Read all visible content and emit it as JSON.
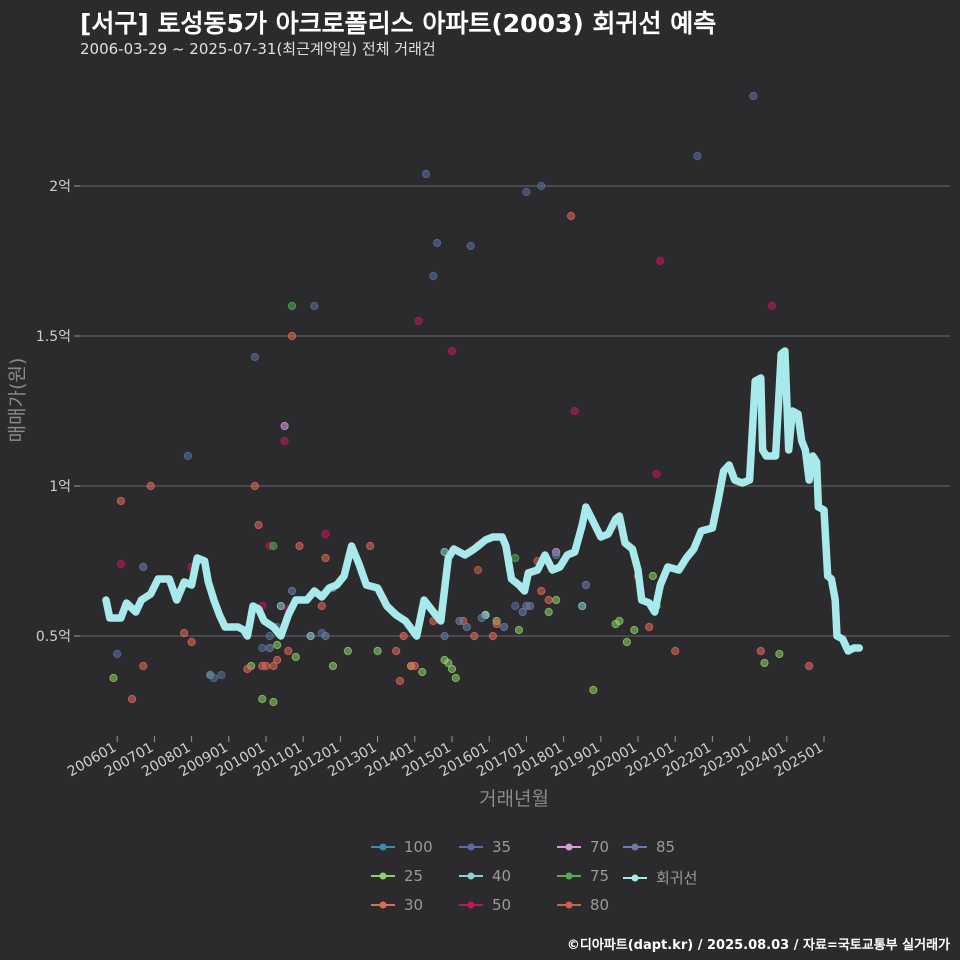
{
  "chart_data": {
    "type": "scatter",
    "title": "[서구] 토성동5가 아크로폴리스 아파트(2003) 회귀선 예측",
    "subtitle": "2006-03-29 ~ 2025-07-31(최근계약일) 전체 거래건",
    "xlabel": "거래년월",
    "ylabel": "매매가(원)",
    "footer": "©디아파트(dapt.kr) / 2025.08.03 / 자료=국토교통부 실거래가",
    "xlim": [
      2006.1,
      2025.9
    ],
    "ylim": [
      0.15,
      2.45
    ],
    "y_ticks": [
      {
        "v": 0.5,
        "label": "0.5억"
      },
      {
        "v": 1.0,
        "label": "1억"
      },
      {
        "v": 1.5,
        "label": "1.5억"
      },
      {
        "v": 2.0,
        "label": "2억"
      }
    ],
    "x_ticks": [
      {
        "v": 2006.0,
        "label": "200601"
      },
      {
        "v": 2007.0,
        "label": "200701"
      },
      {
        "v": 2008.0,
        "label": "200801"
      },
      {
        "v": 2009.0,
        "label": "200901"
      },
      {
        "v": 2010.0,
        "label": "201001"
      },
      {
        "v": 2011.0,
        "label": "201101"
      },
      {
        "v": 2012.0,
        "label": "201201"
      },
      {
        "v": 2013.0,
        "label": "201301"
      },
      {
        "v": 2014.0,
        "label": "201401"
      },
      {
        "v": 2015.0,
        "label": "201501"
      },
      {
        "v": 2016.0,
        "label": "201601"
      },
      {
        "v": 2017.0,
        "label": "201701"
      },
      {
        "v": 2018.0,
        "label": "201801"
      },
      {
        "v": 2019.0,
        "label": "201901"
      },
      {
        "v": 2020.0,
        "label": "202001"
      },
      {
        "v": 2021.0,
        "label": "202101"
      },
      {
        "v": 2022.0,
        "label": "202201"
      },
      {
        "v": 2023.0,
        "label": "202301"
      },
      {
        "v": 2024.0,
        "label": "202401"
      },
      {
        "v": 2025.0,
        "label": "202501"
      }
    ],
    "legend_position": "bottom",
    "grid": "horizontal",
    "series": [
      {
        "name": "100",
        "color": "#3a8fa8",
        "points": []
      },
      {
        "name": "25",
        "color": "#8fcf6a",
        "points": [
          [
            2006.4,
            0.36
          ],
          [
            2009.0,
            0.37
          ],
          [
            2010.1,
            0.4
          ],
          [
            2010.4,
            0.29
          ],
          [
            2010.7,
            0.28
          ],
          [
            2010.8,
            0.47
          ],
          [
            2011.3,
            0.43
          ],
          [
            2012.3,
            0.4
          ],
          [
            2012.7,
            0.45
          ],
          [
            2013.5,
            0.45
          ],
          [
            2014.4,
            0.4
          ],
          [
            2014.7,
            0.38
          ],
          [
            2015.3,
            0.42
          ],
          [
            2015.4,
            0.41
          ],
          [
            2015.5,
            0.39
          ],
          [
            2015.6,
            0.36
          ],
          [
            2016.4,
            0.57
          ],
          [
            2016.7,
            0.55
          ],
          [
            2017.3,
            0.52
          ],
          [
            2018.1,
            0.58
          ],
          [
            2018.3,
            0.62
          ],
          [
            2019.3,
            0.32
          ],
          [
            2019.9,
            0.54
          ],
          [
            2020.0,
            0.55
          ],
          [
            2020.2,
            0.48
          ],
          [
            2020.4,
            0.52
          ],
          [
            2020.9,
            0.7
          ],
          [
            2021.0,
            0.6
          ],
          [
            2023.9,
            0.41
          ],
          [
            2024.3,
            0.44
          ]
        ]
      },
      {
        "name": "30",
        "color": "#e06a5a",
        "points": [
          [
            2006.6,
            0.95
          ],
          [
            2006.9,
            0.29
          ],
          [
            2007.2,
            0.4
          ],
          [
            2007.4,
            1.0
          ],
          [
            2008.3,
            0.51
          ],
          [
            2008.5,
            0.48
          ],
          [
            2010.0,
            0.39
          ],
          [
            2010.2,
            1.0
          ],
          [
            2010.3,
            0.87
          ],
          [
            2010.4,
            0.4
          ],
          [
            2010.5,
            0.4
          ],
          [
            2010.7,
            0.4
          ],
          [
            2010.8,
            0.42
          ],
          [
            2011.1,
            0.45
          ],
          [
            2011.2,
            1.5
          ],
          [
            2011.4,
            0.8
          ],
          [
            2012.0,
            0.6
          ],
          [
            2012.1,
            0.76
          ],
          [
            2013.3,
            0.8
          ],
          [
            2014.0,
            0.45
          ],
          [
            2014.1,
            0.35
          ],
          [
            2014.2,
            0.5
          ],
          [
            2014.4,
            0.4
          ],
          [
            2014.5,
            0.4
          ],
          [
            2015.0,
            0.55
          ],
          [
            2015.8,
            0.55
          ],
          [
            2016.1,
            0.5
          ],
          [
            2016.2,
            0.8
          ],
          [
            2016.6,
            0.5
          ],
          [
            2016.7,
            0.54
          ],
          [
            2017.9,
            0.65
          ],
          [
            2018.1,
            0.62
          ],
          [
            2018.7,
            1.9
          ],
          [
            2020.5,
            0.7
          ],
          [
            2020.8,
            0.53
          ],
          [
            2021.5,
            0.45
          ],
          [
            2023.8,
            0.45
          ],
          [
            2025.1,
            0.4
          ]
        ]
      },
      {
        "name": "35",
        "color": "#5a6fa0",
        "points": [
          [
            2006.5,
            0.44
          ],
          [
            2008.4,
            1.1
          ],
          [
            2009.0,
            0.37
          ],
          [
            2009.1,
            0.36
          ],
          [
            2009.3,
            0.37
          ],
          [
            2010.2,
            1.43
          ],
          [
            2010.4,
            0.46
          ],
          [
            2010.6,
            0.5
          ],
          [
            2010.8,
            0.53
          ],
          [
            2011.8,
            1.6
          ],
          [
            2012.0,
            0.51
          ],
          [
            2014.8,
            2.04
          ],
          [
            2015.0,
            1.7
          ],
          [
            2015.1,
            1.81
          ],
          [
            2016.0,
            1.8
          ],
          [
            2017.2,
            0.6
          ],
          [
            2017.5,
            1.98
          ],
          [
            2017.9,
            2.0
          ],
          [
            2022.1,
            2.1
          ],
          [
            2023.6,
            2.3
          ]
        ]
      },
      {
        "name": "40",
        "color": "#8ecfd6",
        "points": [
          [
            2010.9,
            0.6
          ],
          [
            2011.7,
            0.5
          ],
          [
            2015.3,
            0.78
          ],
          [
            2016.4,
            0.57
          ],
          [
            2019.0,
            0.6
          ]
        ]
      },
      {
        "name": "50",
        "color": "#c0185a",
        "points": [
          [
            2006.6,
            0.74
          ],
          [
            2008.5,
            0.73
          ],
          [
            2010.4,
            0.6
          ],
          [
            2010.6,
            0.8
          ],
          [
            2011.0,
            1.15
          ],
          [
            2011.1,
            0.59
          ],
          [
            2012.1,
            0.84
          ],
          [
            2014.6,
            1.55
          ],
          [
            2015.5,
            1.45
          ],
          [
            2018.8,
            1.25
          ],
          [
            2019.9,
            0.87
          ],
          [
            2021.0,
            1.04
          ],
          [
            2021.1,
            1.75
          ],
          [
            2024.1,
            1.6
          ]
        ]
      },
      {
        "name": "70",
        "color": "#d79cdc",
        "points": [
          [
            2011.0,
            1.2
          ],
          [
            2018.3,
            0.78
          ]
        ]
      },
      {
        "name": "75",
        "color": "#4caf50",
        "points": [
          [
            2010.7,
            0.8
          ],
          [
            2011.2,
            1.6
          ],
          [
            2017.2,
            0.76
          ]
        ]
      },
      {
        "name": "80",
        "color": "#d0604a",
        "points": [
          [
            2016.2,
            0.72
          ],
          [
            2017.8,
            0.75
          ]
        ]
      },
      {
        "name": "85",
        "color": "#6a7fa8",
        "points": [
          [
            2007.2,
            0.73
          ],
          [
            2010.6,
            0.46
          ],
          [
            2011.2,
            0.65
          ],
          [
            2012.1,
            0.5
          ],
          [
            2012.3,
            0.66
          ],
          [
            2015.3,
            0.5
          ],
          [
            2015.7,
            0.55
          ],
          [
            2015.9,
            0.53
          ],
          [
            2016.3,
            0.56
          ],
          [
            2016.9,
            0.53
          ],
          [
            2017.4,
            0.58
          ],
          [
            2017.5,
            0.6
          ],
          [
            2017.6,
            0.6
          ],
          [
            2018.3,
            0.77
          ],
          [
            2019.1,
            0.67
          ]
        ]
      },
      {
        "name": "회귀선",
        "color": "#a8eaec",
        "line": [
          [
            2006.2,
            0.62
          ],
          [
            2006.3,
            0.56
          ],
          [
            2006.6,
            0.56
          ],
          [
            2006.75,
            0.61
          ],
          [
            2007.0,
            0.58
          ],
          [
            2007.15,
            0.62
          ],
          [
            2007.4,
            0.64
          ],
          [
            2007.6,
            0.69
          ],
          [
            2007.9,
            0.69
          ],
          [
            2008.1,
            0.62
          ],
          [
            2008.3,
            0.68
          ],
          [
            2008.5,
            0.67
          ],
          [
            2008.65,
            0.76
          ],
          [
            2008.85,
            0.75
          ],
          [
            2008.95,
            0.68
          ],
          [
            2009.1,
            0.62
          ],
          [
            2009.25,
            0.57
          ],
          [
            2009.4,
            0.53
          ],
          [
            2009.75,
            0.53
          ],
          [
            2009.9,
            0.52
          ],
          [
            2010.0,
            0.5
          ],
          [
            2010.15,
            0.6
          ],
          [
            2010.3,
            0.59
          ],
          [
            2010.45,
            0.55
          ],
          [
            2010.7,
            0.53
          ],
          [
            2010.9,
            0.5
          ],
          [
            2011.1,
            0.57
          ],
          [
            2011.3,
            0.62
          ],
          [
            2011.6,
            0.62
          ],
          [
            2011.8,
            0.65
          ],
          [
            2012.0,
            0.63
          ],
          [
            2012.2,
            0.66
          ],
          [
            2012.4,
            0.67
          ],
          [
            2012.6,
            0.7
          ],
          [
            2012.8,
            0.8
          ],
          [
            2013.0,
            0.74
          ],
          [
            2013.2,
            0.67
          ],
          [
            2013.5,
            0.66
          ],
          [
            2013.75,
            0.6
          ],
          [
            2014.0,
            0.57
          ],
          [
            2014.25,
            0.55
          ],
          [
            2014.55,
            0.5
          ],
          [
            2014.75,
            0.62
          ],
          [
            2015.0,
            0.58
          ],
          [
            2015.2,
            0.55
          ],
          [
            2015.4,
            0.76
          ],
          [
            2015.55,
            0.79
          ],
          [
            2015.7,
            0.78
          ],
          [
            2015.85,
            0.77
          ],
          [
            2016.1,
            0.79
          ],
          [
            2016.4,
            0.82
          ],
          [
            2016.6,
            0.83
          ],
          [
            2016.85,
            0.83
          ],
          [
            2016.95,
            0.8
          ],
          [
            2017.1,
            0.69
          ],
          [
            2017.3,
            0.67
          ],
          [
            2017.45,
            0.65
          ],
          [
            2017.55,
            0.71
          ],
          [
            2017.8,
            0.72
          ],
          [
            2018.0,
            0.77
          ],
          [
            2018.2,
            0.72
          ],
          [
            2018.4,
            0.73
          ],
          [
            2018.6,
            0.77
          ],
          [
            2018.8,
            0.78
          ],
          [
            2019.0,
            0.87
          ],
          [
            2019.1,
            0.93
          ],
          [
            2019.3,
            0.88
          ],
          [
            2019.5,
            0.83
          ],
          [
            2019.7,
            0.84
          ],
          [
            2019.9,
            0.89
          ],
          [
            2020.0,
            0.9
          ],
          [
            2020.15,
            0.81
          ],
          [
            2020.35,
            0.79
          ],
          [
            2020.5,
            0.72
          ],
          [
            2020.6,
            0.62
          ],
          [
            2020.8,
            0.61
          ],
          [
            2020.95,
            0.58
          ],
          [
            2021.1,
            0.67
          ],
          [
            2021.3,
            0.73
          ],
          [
            2021.6,
            0.72
          ],
          [
            2021.8,
            0.76
          ],
          [
            2022.0,
            0.79
          ],
          [
            2022.2,
            0.85
          ],
          [
            2022.5,
            0.86
          ],
          [
            2022.65,
            0.95
          ],
          [
            2022.8,
            1.05
          ],
          [
            2022.95,
            1.07
          ],
          [
            2023.1,
            1.02
          ],
          [
            2023.3,
            1.01
          ],
          [
            2023.5,
            1.02
          ],
          [
            2023.65,
            1.35
          ],
          [
            2023.8,
            1.36
          ],
          [
            2023.85,
            1.12
          ],
          [
            2023.95,
            1.1
          ],
          [
            2024.2,
            1.1
          ],
          [
            2024.35,
            1.44
          ],
          [
            2024.45,
            1.45
          ],
          [
            2024.55,
            1.12
          ],
          [
            2024.65,
            1.25
          ],
          [
            2024.8,
            1.24
          ],
          [
            2024.9,
            1.15
          ],
          [
            2025.0,
            1.12
          ],
          [
            2025.1,
            1.02
          ],
          [
            2025.2,
            1.1
          ],
          [
            2025.3,
            1.08
          ],
          [
            2025.35,
            0.93
          ],
          [
            2025.5,
            0.92
          ],
          [
            2025.6,
            0.7
          ],
          [
            2025.7,
            0.69
          ],
          [
            2025.8,
            0.62
          ],
          [
            2025.85,
            0.5
          ],
          [
            2026.0,
            0.49
          ],
          [
            2026.15,
            0.45
          ],
          [
            2026.3,
            0.46
          ],
          [
            2026.45,
            0.46
          ]
        ]
      }
    ]
  }
}
